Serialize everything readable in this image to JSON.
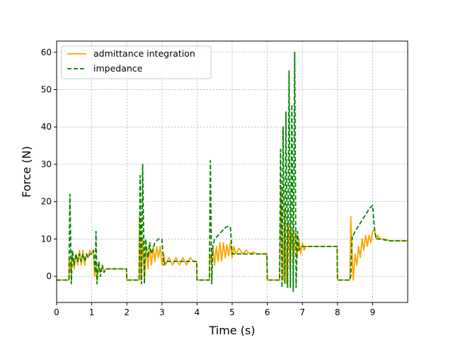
{
  "chart_data": {
    "type": "line",
    "title": "",
    "xlabel": "Time (s)",
    "ylabel": "Force (N)",
    "xlim": [
      0,
      10
    ],
    "ylim": [
      -7,
      63
    ],
    "xticks": [
      0,
      1,
      2,
      3,
      4,
      5,
      6,
      7,
      8,
      9
    ],
    "yticks": [
      0,
      10,
      20,
      30,
      40,
      50,
      60
    ],
    "grid": true,
    "legend_position": "top-left",
    "series": [
      {
        "name": "admittance integration",
        "color": "#ffa500",
        "dash": "solid",
        "x": [
          0,
          0.35,
          0.36,
          0.4,
          0.45,
          0.5,
          0.55,
          0.6,
          0.65,
          0.7,
          0.75,
          0.8,
          0.85,
          0.9,
          0.95,
          1.0,
          1.05,
          1.08,
          1.12,
          1.15,
          1.2,
          1.25,
          1.3,
          1.35,
          1.4,
          1.5,
          1.6,
          1.7,
          1.8,
          1.9,
          1.99,
          2.0,
          2.35,
          2.36,
          2.4,
          2.45,
          2.5,
          2.55,
          2.6,
          2.65,
          2.7,
          2.75,
          2.8,
          2.85,
          2.9,
          2.95,
          3.0,
          3.05,
          3.1,
          3.2,
          3.3,
          3.4,
          3.5,
          3.6,
          3.7,
          3.8,
          3.9,
          3.99,
          4.0,
          4.35,
          4.36,
          4.4,
          4.45,
          4.5,
          4.55,
          4.6,
          4.65,
          4.7,
          4.75,
          4.8,
          4.85,
          4.9,
          4.95,
          5.0,
          5.05,
          5.1,
          5.2,
          5.3,
          5.4,
          5.5,
          5.6,
          5.7,
          5.8,
          5.9,
          5.99,
          6.0,
          6.35,
          6.36,
          6.4,
          6.45,
          6.5,
          6.55,
          6.6,
          6.65,
          6.7,
          6.75,
          6.8,
          6.85,
          6.9,
          6.95,
          7.0,
          7.05,
          7.1,
          7.2,
          7.5,
          7.99,
          8.0,
          8.35,
          8.38,
          8.42,
          8.45,
          8.5,
          8.55,
          8.6,
          8.65,
          8.7,
          8.75,
          8.8,
          8.85,
          8.9,
          8.95,
          9.0,
          9.05,
          9.1,
          9.15,
          9.2,
          9.3,
          9.5,
          9.7,
          10
        ],
        "y": [
          -1,
          -1,
          5,
          1,
          6,
          2,
          6,
          3,
          7,
          3,
          7,
          3,
          6,
          5,
          7,
          6,
          7,
          0,
          3,
          -1,
          3,
          1,
          2.5,
          1.5,
          2,
          2,
          2,
          2,
          2,
          2,
          2,
          -1,
          -1,
          16,
          -1,
          10,
          -1,
          8,
          2,
          8,
          3,
          8,
          4,
          8,
          5,
          8,
          3,
          6,
          3,
          5,
          3,
          5,
          3,
          5,
          3,
          5,
          4,
          4,
          -1,
          -1,
          6,
          4,
          8,
          3,
          8,
          4,
          9,
          4,
          9,
          5,
          8.5,
          5.5,
          9,
          5,
          8,
          6,
          7.5,
          6,
          7,
          6,
          6.5,
          6,
          6,
          6,
          6,
          -1,
          -1,
          5,
          24,
          -1,
          18,
          -2,
          15,
          2,
          12,
          4,
          12,
          5,
          10,
          6,
          9,
          7,
          8,
          8,
          8,
          8,
          -1,
          -1,
          16,
          5,
          -1,
          6,
          3,
          8,
          5,
          10,
          7,
          11,
          8,
          11,
          9,
          12,
          12.5,
          10,
          11,
          10,
          10,
          9.5,
          9.5,
          9.5
        ]
      },
      {
        "name": "impedance",
        "color": "#008000",
        "dash": "dashed",
        "x": [
          0,
          0.35,
          0.38,
          0.42,
          0.45,
          0.5,
          0.55,
          0.6,
          0.65,
          0.7,
          0.75,
          0.8,
          0.85,
          0.9,
          0.95,
          1.0,
          1.05,
          1.1,
          1.12,
          1.15,
          1.2,
          1.25,
          1.3,
          1.35,
          1.4,
          1.5,
          1.7,
          1.99,
          2.0,
          2.35,
          2.38,
          2.42,
          2.45,
          2.5,
          2.53,
          2.6,
          2.65,
          2.7,
          2.8,
          2.9,
          3.0,
          3.05,
          3.1,
          3.2,
          3.4,
          3.6,
          3.8,
          3.99,
          4.0,
          4.35,
          4.38,
          4.42,
          4.45,
          4.5,
          4.6,
          4.7,
          4.8,
          4.9,
          4.95,
          5.0,
          5.05,
          5.1,
          5.3,
          5.6,
          5.99,
          6.0,
          6.35,
          6.38,
          6.42,
          6.45,
          6.5,
          6.53,
          6.58,
          6.62,
          6.66,
          6.7,
          6.74,
          6.78,
          6.82,
          6.86,
          6.9,
          6.95,
          7.0,
          7.05,
          7.1,
          7.2,
          7.5,
          7.99,
          8.0,
          8.35,
          8.38,
          8.42,
          8.45,
          8.5,
          8.7,
          8.9,
          9.0,
          9.05,
          9.1,
          9.2,
          9.5,
          10
        ],
        "y": [
          -1,
          -1,
          22,
          -2,
          7,
          3,
          6,
          4,
          6,
          4,
          6,
          4,
          6,
          5,
          6,
          6,
          7,
          1,
          12,
          -2,
          4,
          0,
          3,
          1,
          2,
          2,
          2,
          2,
          -1,
          -1,
          27,
          -2,
          30,
          -2,
          10,
          5,
          9,
          6,
          9,
          10,
          10,
          3,
          4,
          4,
          4,
          4,
          4,
          4,
          -1,
          -1,
          31,
          -2,
          8,
          10,
          11,
          12,
          13,
          13.5,
          13,
          6,
          6,
          6,
          6,
          6,
          6,
          -1,
          -1,
          34,
          -3,
          40,
          -2,
          44,
          -3,
          55,
          -3,
          46,
          -4,
          60,
          -3,
          12,
          7,
          8,
          8,
          8,
          8,
          8,
          8,
          8,
          -1,
          -1,
          0,
          11,
          11,
          12,
          15,
          18,
          19,
          13,
          10,
          10,
          9.5,
          9.5
        ]
      }
    ]
  }
}
